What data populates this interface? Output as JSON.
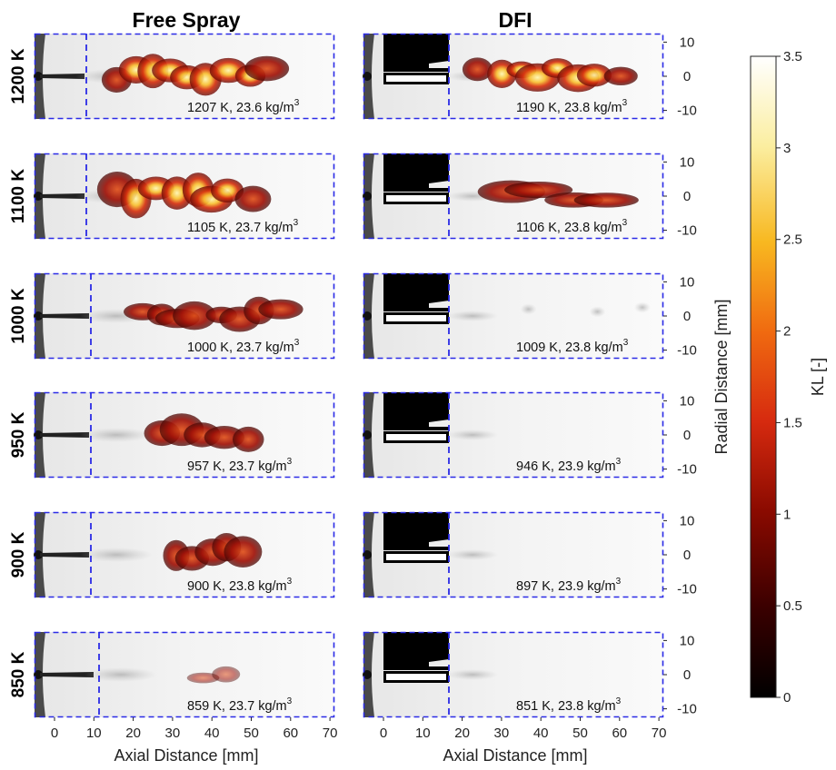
{
  "columns": [
    {
      "title": "Free Spray"
    },
    {
      "title": "DFI"
    }
  ],
  "rows": [
    {
      "label": "1200 K",
      "free": {
        "cond_text": "1207 K, 23.6 kg/m",
        "cond_exp": "3"
      },
      "dfi": {
        "cond_text": "1190 K, 23.8 kg/m",
        "cond_exp": "3"
      }
    },
    {
      "label": "1100 K",
      "free": {
        "cond_text": "1105 K, 23.7 kg/m",
        "cond_exp": "3"
      },
      "dfi": {
        "cond_text": "1106 K, 23.8 kg/m",
        "cond_exp": "3"
      }
    },
    {
      "label": "1000 K",
      "free": {
        "cond_text": "1000 K, 23.7 kg/m",
        "cond_exp": "3"
      },
      "dfi": {
        "cond_text": "1009 K, 23.8 kg/m",
        "cond_exp": "3"
      }
    },
    {
      "label": "950 K",
      "free": {
        "cond_text": "957 K, 23.7 kg/m",
        "cond_exp": "3"
      },
      "dfi": {
        "cond_text": "946 K, 23.9 kg/m",
        "cond_exp": "3"
      }
    },
    {
      "label": "900 K",
      "free": {
        "cond_text": "900 K, 23.8 kg/m",
        "cond_exp": "3"
      },
      "dfi": {
        "cond_text": "897 K, 23.9 kg/m",
        "cond_exp": "3"
      }
    },
    {
      "label": "850 K",
      "free": {
        "cond_text": "859 K, 23.7 kg/m",
        "cond_exp": "3"
      },
      "dfi": {
        "cond_text": "851 K, 23.8 kg/m",
        "cond_exp": "3"
      }
    }
  ],
  "x_axis": {
    "label": "Axial Distance [mm]",
    "ticks": [
      "0",
      "10",
      "20",
      "30",
      "40",
      "50",
      "60",
      "70"
    ]
  },
  "y_axis": {
    "label": "Radial Distance [mm]",
    "ticks": [
      "10",
      "0",
      "-10"
    ]
  },
  "colorbar": {
    "label": "KL [-]",
    "ticks": [
      "3.5",
      "3",
      "2.5",
      "2",
      "1.5",
      "1",
      "0.5",
      "0"
    ],
    "colors": [
      "#000000",
      "#3a0000",
      "#8a0a00",
      "#d62a0f",
      "#f06a10",
      "#f8b820",
      "#fbeea0",
      "#ffffff"
    ]
  }
}
